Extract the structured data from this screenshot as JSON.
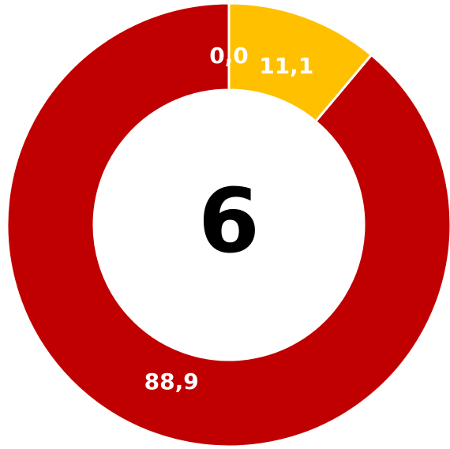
{
  "chart_data": {
    "type": "donut",
    "center_label": "6",
    "categories": [
      null,
      null,
      null
    ],
    "values": [
      0.0,
      11.1,
      88.9
    ],
    "value_labels": [
      "0,0",
      "11,1",
      "88,9"
    ],
    "colors": [
      "#70ad47",
      "#ffc000",
      "#c00000"
    ]
  }
}
